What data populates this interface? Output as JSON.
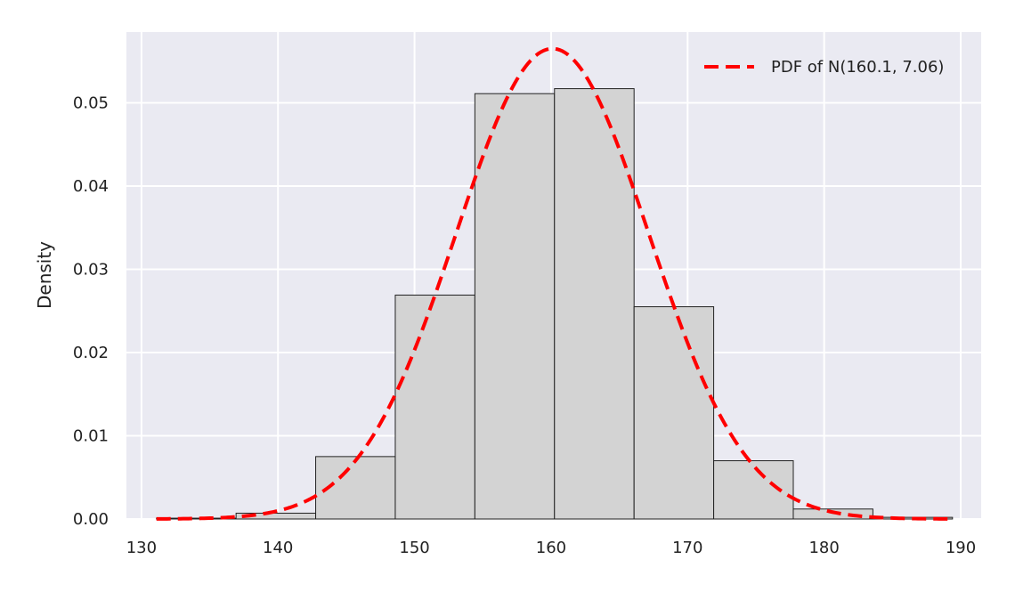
{
  "chart_data": {
    "type": "bar",
    "title": "",
    "xlabel": "",
    "ylabel": "Density",
    "xlim": [
      128.9,
      191.5
    ],
    "ylim": [
      0,
      0.0585
    ],
    "grid": true,
    "xticks": [
      130,
      140,
      150,
      160,
      170,
      180,
      190
    ],
    "yticks": [
      0.0,
      0.01,
      0.02,
      0.03,
      0.04,
      0.05
    ],
    "ytick_labels": [
      "0.00",
      "0.01",
      "0.02",
      "0.03",
      "0.04",
      "0.05"
    ],
    "histogram": {
      "bin_edges": [
        131.1,
        136.93,
        142.76,
        148.59,
        154.42,
        160.25,
        166.08,
        171.91,
        177.74,
        183.57,
        189.4
      ],
      "densities": [
        0.0001,
        0.0007,
        0.0075,
        0.0269,
        0.0511,
        0.0517,
        0.0255,
        0.007,
        0.0012,
        0.0002
      ],
      "fill": "#d3d3d3",
      "edge": "#222222"
    },
    "series": [
      {
        "name": "PDF of N(160.1, 7.06)",
        "kind": "normal-pdf",
        "mu": 160.1,
        "sigma": 7.06,
        "x_range": [
          131.1,
          189.4
        ],
        "color": "#ff0000",
        "linestyle": "dashed"
      }
    ],
    "legend": {
      "placement": "top-right"
    },
    "colors": {
      "background": "#eaeaf2",
      "grid": "#ffffff"
    }
  }
}
